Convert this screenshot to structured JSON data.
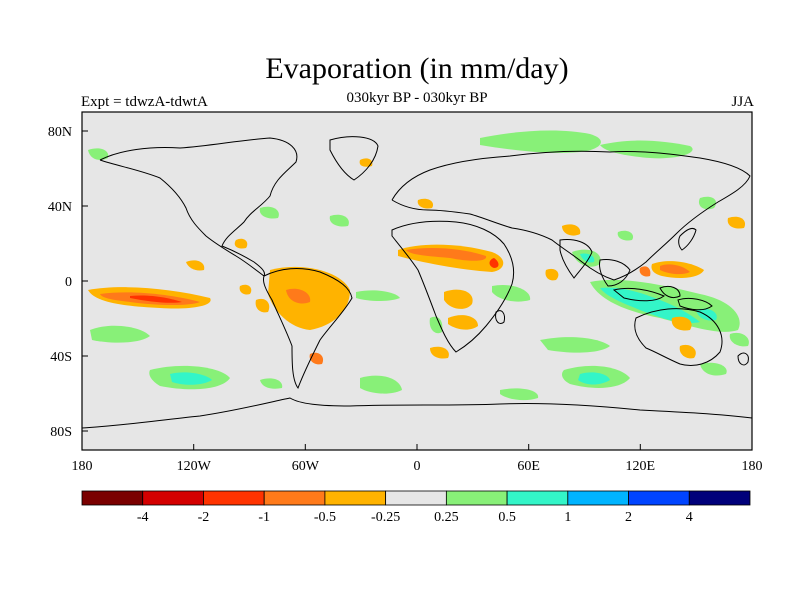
{
  "header": {
    "title": "Evaporation (in mm/day)",
    "subtitle": "030kyr BP - 030kyr BP",
    "left_label": "Expt = tdwzA-tdwtA",
    "right_label": "JJA"
  },
  "map": {
    "lat_ticks": [
      "80N",
      "40N",
      "0",
      "40S",
      "80S"
    ],
    "lon_ticks": [
      "180",
      "120W",
      "60W",
      "0",
      "60E",
      "120E",
      "180"
    ],
    "background_color": "#e6e6e6"
  },
  "colorbar": {
    "labels": [
      "-4",
      "-2",
      "-1",
      "-0.5",
      "-0.25",
      "0.25",
      "0.5",
      "1",
      "2",
      "4"
    ],
    "colors": [
      "#7a0000",
      "#d40000",
      "#ff3300",
      "#ff7a1a",
      "#ffb300",
      "#e6e6e6",
      "#88f078",
      "#33f5c8",
      "#00b4ff",
      "#0044ff",
      "#00007a"
    ]
  }
}
